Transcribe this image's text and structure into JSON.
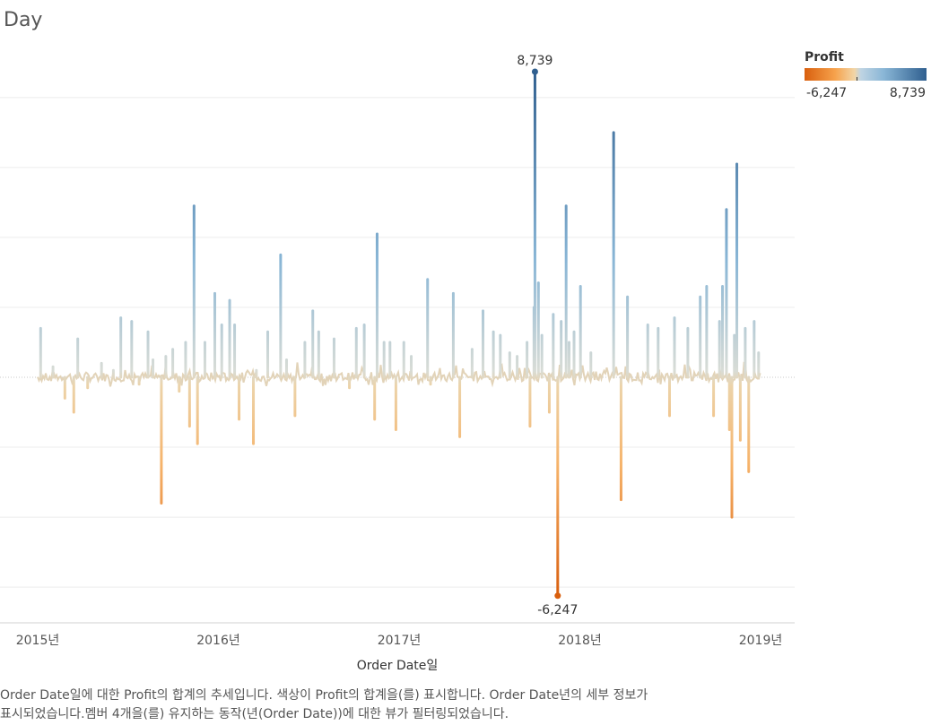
{
  "title": "Day",
  "legend": {
    "title": "Profit",
    "min_label": "-6,247",
    "max_label": "8,739"
  },
  "caption": {
    "line1": "Order Date일에 대한 Profit의 합계의 추세입니다. 색상이 Profit의 합계을(를) 표시합니다. Order Date년의 세부 정보가",
    "line2": "표시되었습니다.멤버 4개을(를) 유지하는 동작(년(Order Date))에 대한 뷰가 필터링되었습니다."
  },
  "colors": {
    "negative": "#d95f0e",
    "neg_light": "#f6b36a",
    "neutral": "#e6d8c0",
    "pos_light": "#9cc1dc",
    "positive": "#2f5f8f",
    "grid": "#ececec"
  },
  "chart_data": {
    "type": "line",
    "title": "Day",
    "xlabel": "Order Date일",
    "ylabel": "",
    "x_ticks": [
      "2015년",
      "2016년",
      "2017년",
      "2018년",
      "2019년"
    ],
    "xlim": [
      "2015-01-01",
      "2019-01-01"
    ],
    "ylim": [
      -7000,
      9500
    ],
    "grid": true,
    "color_legend": "top-right",
    "annotations": [
      {
        "date": "2017-10-02",
        "value": 8739,
        "text": "8,739"
      },
      {
        "date": "2017-11-17",
        "value": -6247,
        "text": "-6,247"
      }
    ],
    "series": [
      {
        "name": "Profit",
        "points": [
          [
            "2015-01-07",
            1400
          ],
          [
            "2015-02-01",
            300
          ],
          [
            "2015-02-25",
            -600
          ],
          [
            "2015-03-15",
            -1000
          ],
          [
            "2015-03-23",
            1100
          ],
          [
            "2015-04-12",
            -300
          ],
          [
            "2015-05-10",
            400
          ],
          [
            "2015-06-03",
            200
          ],
          [
            "2015-06-18",
            1700
          ],
          [
            "2015-07-10",
            1600
          ],
          [
            "2015-07-25",
            -200
          ],
          [
            "2015-08-12",
            1300
          ],
          [
            "2015-08-22",
            500
          ],
          [
            "2015-09-08",
            -3600
          ],
          [
            "2015-09-17",
            600
          ],
          [
            "2015-10-01",
            800
          ],
          [
            "2015-10-14",
            -400
          ],
          [
            "2015-10-27",
            1000
          ],
          [
            "2015-11-04",
            -1400
          ],
          [
            "2015-11-13",
            4900
          ],
          [
            "2015-11-20",
            -1900
          ],
          [
            "2015-12-05",
            1000
          ],
          [
            "2015-12-25",
            2400
          ],
          [
            "2016-01-08",
            1500
          ],
          [
            "2016-01-24",
            2200
          ],
          [
            "2016-02-03",
            1500
          ],
          [
            "2016-02-12",
            -1200
          ],
          [
            "2016-03-12",
            -1900
          ],
          [
            "2016-03-18",
            200
          ],
          [
            "2016-04-10",
            1300
          ],
          [
            "2016-05-06",
            3500
          ],
          [
            "2016-05-18",
            500
          ],
          [
            "2016-06-04",
            -1100
          ],
          [
            "2016-06-24",
            1000
          ],
          [
            "2016-07-10",
            1900
          ],
          [
            "2016-07-22",
            1300
          ],
          [
            "2016-08-22",
            1100
          ],
          [
            "2016-09-22",
            -300
          ],
          [
            "2016-10-06",
            1400
          ],
          [
            "2016-10-22",
            1500
          ],
          [
            "2016-11-12",
            -1200
          ],
          [
            "2016-11-17",
            4100
          ],
          [
            "2016-12-01",
            1000
          ],
          [
            "2016-12-13",
            1000
          ],
          [
            "2016-12-25",
            -1500
          ],
          [
            "2017-01-10",
            1000
          ],
          [
            "2017-01-25",
            600
          ],
          [
            "2017-02-27",
            2800
          ],
          [
            "2017-03-05",
            -200
          ],
          [
            "2017-04-20",
            2400
          ],
          [
            "2017-05-03",
            -1700
          ],
          [
            "2017-05-28",
            800
          ],
          [
            "2017-06-19",
            1900
          ],
          [
            "2017-07-10",
            1300
          ],
          [
            "2017-07-24",
            1200
          ],
          [
            "2017-08-12",
            700
          ],
          [
            "2017-08-27",
            600
          ],
          [
            "2017-09-16",
            1000
          ],
          [
            "2017-09-22",
            -1400
          ],
          [
            "2017-09-30",
            2000
          ],
          [
            "2017-10-02",
            8739
          ],
          [
            "2017-10-09",
            2700
          ],
          [
            "2017-10-16",
            1200
          ],
          [
            "2017-10-31",
            -1000
          ],
          [
            "2017-11-08",
            1800
          ],
          [
            "2017-11-17",
            -6247
          ],
          [
            "2017-11-24",
            1600
          ],
          [
            "2017-12-04",
            4900
          ],
          [
            "2017-12-10",
            1000
          ],
          [
            "2017-12-20",
            1300
          ],
          [
            "2018-01-02",
            2600
          ],
          [
            "2018-01-23",
            700
          ],
          [
            "2018-03-10",
            7000
          ],
          [
            "2018-03-25",
            -3500
          ],
          [
            "2018-04-07",
            2300
          ],
          [
            "2018-05-18",
            1500
          ],
          [
            "2018-06-08",
            1400
          ],
          [
            "2018-07-01",
            -1100
          ],
          [
            "2018-07-11",
            1700
          ],
          [
            "2018-08-07",
            1400
          ],
          [
            "2018-09-01",
            2300
          ],
          [
            "2018-09-14",
            2600
          ],
          [
            "2018-09-28",
            -1100
          ],
          [
            "2018-10-10",
            1600
          ],
          [
            "2018-10-16",
            2600
          ],
          [
            "2018-10-24",
            4800
          ],
          [
            "2018-10-30",
            -1500
          ],
          [
            "2018-11-04",
            -4000
          ],
          [
            "2018-11-09",
            1200
          ],
          [
            "2018-11-14",
            6100
          ],
          [
            "2018-11-21",
            -1800
          ],
          [
            "2018-12-01",
            1400
          ],
          [
            "2018-12-08",
            -2700
          ],
          [
            "2018-12-19",
            1600
          ],
          [
            "2018-12-28",
            700
          ]
        ]
      }
    ]
  }
}
